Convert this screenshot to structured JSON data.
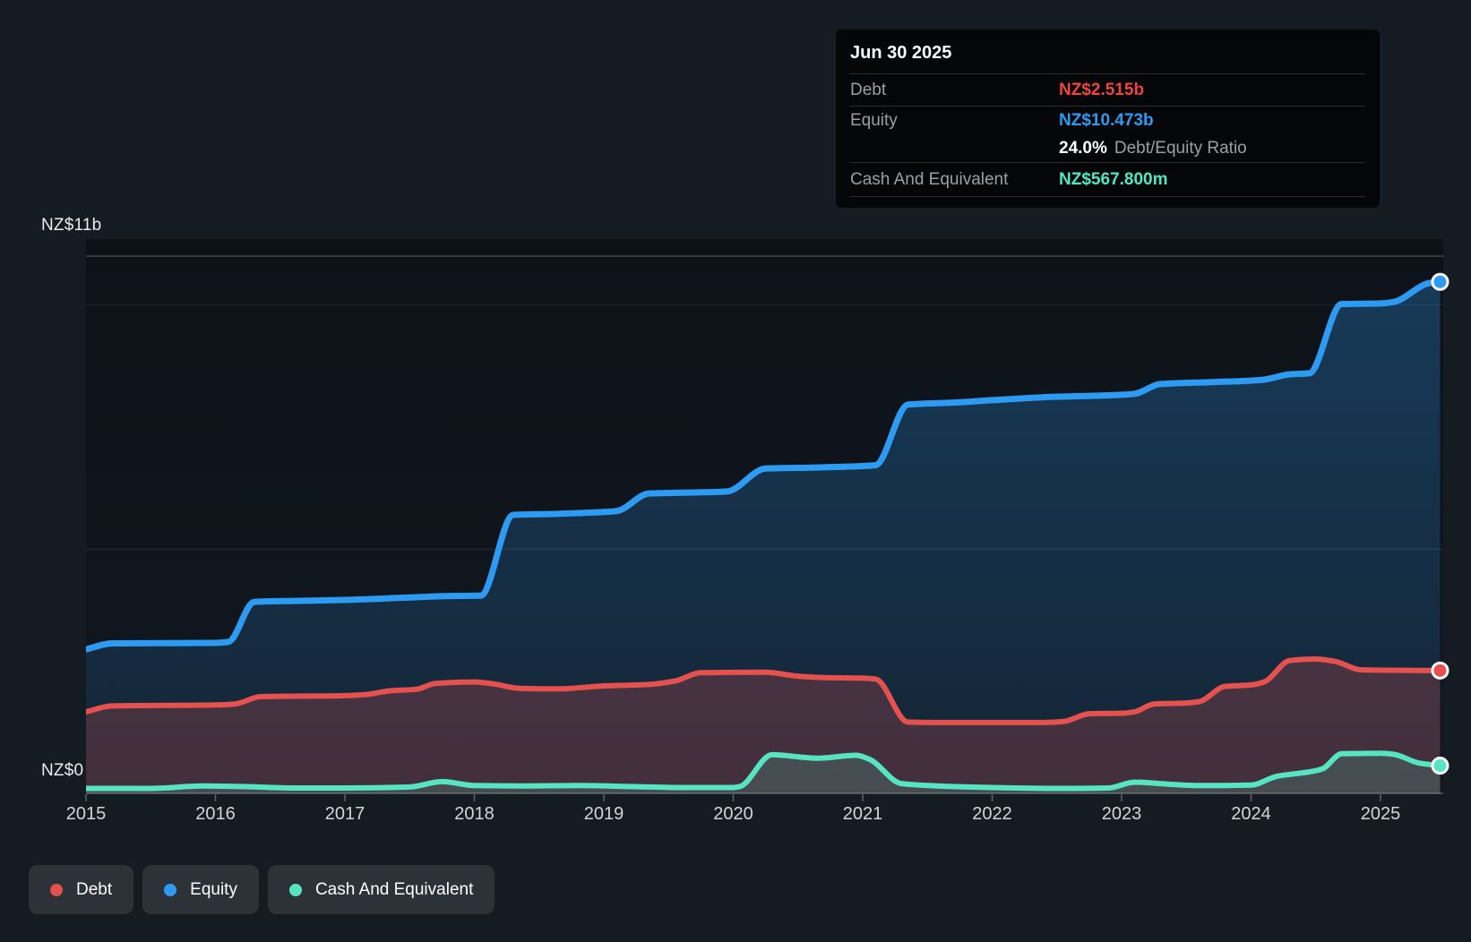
{
  "y_axis": {
    "top_label": "NZ$11b",
    "bottom_label": "NZ$0"
  },
  "x_axis": {
    "years": [
      "2015",
      "2016",
      "2017",
      "2018",
      "2019",
      "2020",
      "2021",
      "2022",
      "2023",
      "2024",
      "2025"
    ]
  },
  "tooltip": {
    "date": "Jun 30 2025",
    "rows": [
      {
        "label": "Debt",
        "value": "NZ$2.515b",
        "color": "#ef453f"
      },
      {
        "label": "Equity",
        "value": "NZ$10.473b",
        "color": "#2e9bf3"
      },
      {
        "label": "Cash And Equivalent",
        "value": "NZ$567.800m",
        "color": "#52e6c2"
      }
    ],
    "ratio": {
      "value": "24.0%",
      "label": "Debt/Equity Ratio"
    }
  },
  "legend": {
    "items": [
      {
        "label": "Debt",
        "color": "#e4514e"
      },
      {
        "label": "Equity",
        "color": "#2e9bf3"
      },
      {
        "label": "Cash And Equivalent",
        "color": "#57e4c2"
      }
    ]
  },
  "chart_data": {
    "type": "area",
    "title": "Debt to Equity History",
    "x_unit": "year",
    "xlim": [
      2015,
      2025.5
    ],
    "ylim": [
      0,
      11
    ],
    "currency_prefix": "NZ$",
    "grid": "on",
    "gridlines_billions": [
      0,
      5,
      10,
      11
    ],
    "legend_position": "bottom",
    "series": [
      {
        "name": "Equity",
        "color": "#2e9bf3",
        "points": [
          [
            2015.0,
            2.95
          ],
          [
            2015.2,
            3.07
          ],
          [
            2016.0,
            3.08
          ],
          [
            2016.1,
            3.1
          ],
          [
            2016.3,
            3.92
          ],
          [
            2016.6,
            3.94
          ],
          [
            2017.0,
            3.96
          ],
          [
            2017.5,
            4.01
          ],
          [
            2017.8,
            4.04
          ],
          [
            2018.05,
            4.05
          ],
          [
            2018.3,
            5.7
          ],
          [
            2018.6,
            5.72
          ],
          [
            2019.0,
            5.76
          ],
          [
            2019.1,
            5.78
          ],
          [
            2019.35,
            6.14
          ],
          [
            2019.7,
            6.16
          ],
          [
            2019.95,
            6.18
          ],
          [
            2020.25,
            6.65
          ],
          [
            2020.6,
            6.67
          ],
          [
            2021.0,
            6.7
          ],
          [
            2021.1,
            6.72
          ],
          [
            2021.35,
            7.96
          ],
          [
            2021.7,
            8.0
          ],
          [
            2022.0,
            8.05
          ],
          [
            2022.4,
            8.11
          ],
          [
            2023.0,
            8.16
          ],
          [
            2023.1,
            8.18
          ],
          [
            2023.3,
            8.38
          ],
          [
            2023.7,
            8.42
          ],
          [
            2024.0,
            8.45
          ],
          [
            2024.1,
            8.47
          ],
          [
            2024.3,
            8.58
          ],
          [
            2024.45,
            8.6
          ],
          [
            2024.7,
            10.02
          ],
          [
            2025.0,
            10.03
          ],
          [
            2025.1,
            10.06
          ],
          [
            2025.38,
            10.45
          ],
          [
            2025.46,
            10.473
          ]
        ],
        "final_value_label": "NZ$10.473b"
      },
      {
        "name": "Debt",
        "color": "#e4514e",
        "points": [
          [
            2015.0,
            1.67
          ],
          [
            2015.2,
            1.79
          ],
          [
            2016.0,
            1.81
          ],
          [
            2016.15,
            1.83
          ],
          [
            2016.35,
            1.98
          ],
          [
            2017.0,
            2.0
          ],
          [
            2017.15,
            2.02
          ],
          [
            2017.35,
            2.1
          ],
          [
            2017.55,
            2.13
          ],
          [
            2017.7,
            2.25
          ],
          [
            2018.0,
            2.28
          ],
          [
            2018.15,
            2.24
          ],
          [
            2018.35,
            2.15
          ],
          [
            2018.65,
            2.14
          ],
          [
            2019.0,
            2.2
          ],
          [
            2019.35,
            2.23
          ],
          [
            2019.55,
            2.3
          ],
          [
            2019.75,
            2.47
          ],
          [
            2020.25,
            2.48
          ],
          [
            2020.5,
            2.4
          ],
          [
            2020.7,
            2.37
          ],
          [
            2021.0,
            2.36
          ],
          [
            2021.1,
            2.34
          ],
          [
            2021.35,
            1.46
          ],
          [
            2021.7,
            1.45
          ],
          [
            2022.4,
            1.45
          ],
          [
            2022.55,
            1.47
          ],
          [
            2022.75,
            1.63
          ],
          [
            2023.0,
            1.64
          ],
          [
            2023.1,
            1.67
          ],
          [
            2023.25,
            1.83
          ],
          [
            2023.5,
            1.85
          ],
          [
            2023.6,
            1.88
          ],
          [
            2023.8,
            2.19
          ],
          [
            2024.0,
            2.22
          ],
          [
            2024.1,
            2.28
          ],
          [
            2024.3,
            2.72
          ],
          [
            2024.5,
            2.75
          ],
          [
            2024.65,
            2.7
          ],
          [
            2024.85,
            2.53
          ],
          [
            2025.1,
            2.52
          ],
          [
            2025.46,
            2.515
          ]
        ],
        "final_value_label": "NZ$2.515b"
      },
      {
        "name": "Cash And Equivalent",
        "color": "#57e4c2",
        "points": [
          [
            2015.0,
            0.1
          ],
          [
            2015.5,
            0.1
          ],
          [
            2015.9,
            0.15
          ],
          [
            2016.2,
            0.14
          ],
          [
            2016.6,
            0.11
          ],
          [
            2017.0,
            0.11
          ],
          [
            2017.5,
            0.13
          ],
          [
            2017.75,
            0.24
          ],
          [
            2018.0,
            0.16
          ],
          [
            2018.4,
            0.15
          ],
          [
            2018.8,
            0.16
          ],
          [
            2019.2,
            0.14
          ],
          [
            2019.6,
            0.12
          ],
          [
            2020.0,
            0.12
          ],
          [
            2020.05,
            0.14
          ],
          [
            2020.3,
            0.79
          ],
          [
            2020.65,
            0.72
          ],
          [
            2020.95,
            0.78
          ],
          [
            2021.05,
            0.7
          ],
          [
            2021.3,
            0.2
          ],
          [
            2021.7,
            0.14
          ],
          [
            2022.0,
            0.12
          ],
          [
            2022.5,
            0.1
          ],
          [
            2022.9,
            0.11
          ],
          [
            2023.1,
            0.23
          ],
          [
            2023.35,
            0.19
          ],
          [
            2023.6,
            0.16
          ],
          [
            2024.0,
            0.17
          ],
          [
            2024.2,
            0.35
          ],
          [
            2024.45,
            0.44
          ],
          [
            2024.55,
            0.5
          ],
          [
            2024.7,
            0.81
          ],
          [
            2025.0,
            0.82
          ],
          [
            2025.1,
            0.8
          ],
          [
            2025.3,
            0.62
          ],
          [
            2025.46,
            0.5678
          ]
        ],
        "final_value_label": "NZ$567.800m"
      }
    ]
  }
}
